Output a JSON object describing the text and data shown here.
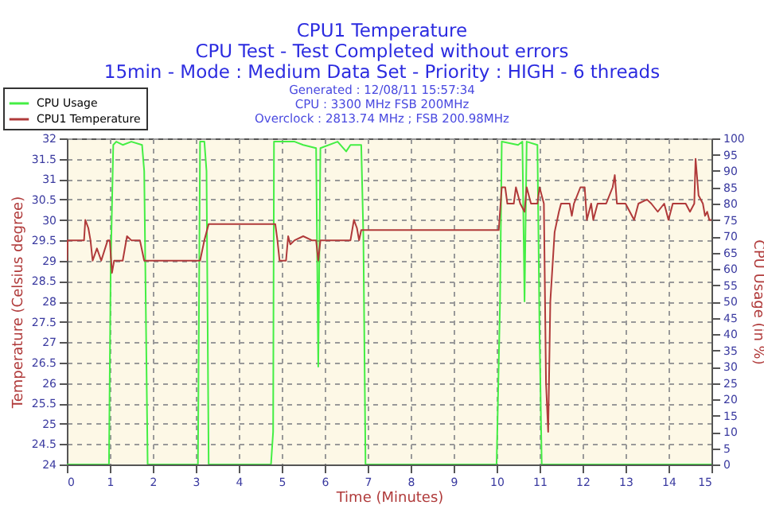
{
  "chart_data": {
    "type": "line",
    "title": "CPU1 Temperature",
    "subtitle": "CPU Test - Test Completed without errors\n15min - Mode : Medium Data Set - Priority : HIGH - 6 threads",
    "annotations": [
      "Generated : 12/08/11 15:57:34",
      "CPU : 3300 MHz FSB 200MHz",
      "Overclock : 2813.74 MHz ; FSB 200.98MHz"
    ],
    "xlabel": "Time (Minutes)",
    "ylabel": "Temperature (Celsius degree)",
    "y2label": "CPU Usage (in %)",
    "xlim": [
      0,
      15
    ],
    "xticks": [
      0,
      1,
      2,
      3,
      4,
      5,
      6,
      7,
      8,
      9,
      10,
      11,
      12,
      13,
      14,
      15
    ],
    "ylim": [
      24,
      32
    ],
    "yticks": [
      24,
      24.5,
      25,
      25.5,
      26,
      26.5,
      27,
      27.5,
      28,
      28.5,
      29,
      29.5,
      30,
      30.5,
      31,
      31.5,
      32
    ],
    "y2lim": [
      0,
      100
    ],
    "y2ticks": [
      0,
      5,
      10,
      15,
      20,
      25,
      30,
      35,
      40,
      45,
      50,
      55,
      60,
      65,
      70,
      75,
      80,
      85,
      90,
      95,
      100
    ],
    "grid": true,
    "legend": "top left",
    "line_style": "solid",
    "series": [
      {
        "name": "CPU Usage",
        "color": "#44ee44",
        "axis": "y2",
        "x": [
          0,
          0.98,
          1.02,
          1.08,
          1.15,
          1.3,
          1.5,
          1.75,
          1.8,
          1.88,
          3.05,
          3.1,
          3.2,
          3.25,
          3.3,
          4.75,
          4.8,
          4.82,
          5.3,
          5.5,
          5.8,
          5.85,
          5.9,
          6.3,
          6.5,
          6.6,
          6.85,
          6.9,
          6.95,
          10,
          10.08,
          10.12,
          10.5,
          10.6,
          10.65,
          10.7,
          10.95,
          11,
          11.05,
          15
        ],
        "values": [
          0,
          0,
          60,
          98,
          99,
          98,
          99,
          98,
          90,
          0,
          0,
          99,
          99,
          90,
          0,
          0,
          10,
          99,
          99,
          98,
          97,
          30,
          97,
          99,
          96,
          98,
          98,
          70,
          0,
          0,
          50,
          99,
          98,
          99,
          50,
          99,
          98,
          40,
          0,
          0
        ]
      },
      {
        "name": "CPU1 Temperature",
        "color": "#b03a3a",
        "x": [
          0,
          0.02,
          0.4,
          0.43,
          0.5,
          0.55,
          0.6,
          0.7,
          0.8,
          0.95,
          1,
          1.05,
          1.1,
          1.3,
          1.4,
          1.5,
          1.7,
          1.8,
          3.1,
          3.2,
          3.3,
          4.85,
          4.9,
          4.95,
          5.1,
          5.15,
          5.2,
          5.3,
          5.5,
          5.7,
          5.8,
          5.85,
          5.9,
          6.6,
          6.68,
          6.75,
          6.8,
          6.85,
          10.05,
          10.12,
          10.2,
          10.25,
          10.4,
          10.45,
          10.55,
          10.65,
          10.7,
          10.8,
          10.95,
          11,
          11.1,
          11.15,
          11.2,
          11.25,
          11.35,
          11.45,
          11.5,
          11.7,
          11.75,
          11.8,
          11.95,
          12.05,
          12.1,
          12.2,
          12.25,
          12.35,
          12.55,
          12.7,
          12.75,
          12.8,
          13,
          13.1,
          13.2,
          13.3,
          13.5,
          13.6,
          13.75,
          13.9,
          14,
          14.1,
          14.4,
          14.5,
          14.6,
          14.63,
          14.7,
          14.8,
          14.85,
          14.9,
          14.95,
          15
        ],
        "values": [
          29,
          29.5,
          29.5,
          30,
          29.8,
          29.5,
          29,
          29.3,
          29,
          29.5,
          29.5,
          28.7,
          29,
          29,
          29.6,
          29.5,
          29.5,
          29,
          29,
          29.5,
          29.9,
          29.9,
          29.5,
          29,
          29,
          29.6,
          29.4,
          29.5,
          29.6,
          29.5,
          29.5,
          29,
          29.5,
          29.5,
          30,
          29.8,
          29.5,
          29.75,
          29.75,
          30.8,
          30.8,
          30.4,
          30.4,
          30.8,
          30.4,
          30.2,
          30.8,
          30.4,
          30.4,
          30.8,
          30.4,
          26,
          24.8,
          28,
          29.7,
          30.2,
          30.4,
          30.4,
          30.1,
          30.4,
          30.8,
          30.8,
          30,
          30.4,
          30,
          30.4,
          30.4,
          30.8,
          31.1,
          30.4,
          30.4,
          30.2,
          30,
          30.4,
          30.5,
          30.4,
          30.2,
          30.4,
          30,
          30.4,
          30.4,
          30.2,
          30.4,
          31.5,
          30.6,
          30.4,
          30.1,
          30.2,
          30,
          30
        ]
      }
    ]
  }
}
